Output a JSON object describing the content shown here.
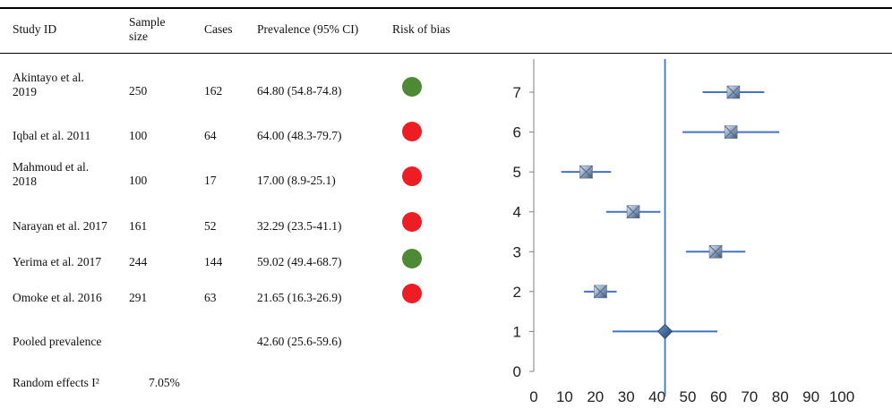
{
  "table": {
    "headers": {
      "study": "Study ID",
      "sample": "Sample size",
      "cases": "Cases",
      "prevalence": "Prevalence (95% CI)",
      "risk": "Risk of bias"
    },
    "rows": [
      {
        "study": "Akintayo et al. 2019",
        "sample": "250",
        "cases": "162",
        "prevalence": "64.80 (54.8-74.8)",
        "risk": "low"
      },
      {
        "study": "Iqbal et al. 2011",
        "sample": "100",
        "cases": "64",
        "prevalence": "64.00 (48.3-79.7)",
        "risk": "high"
      },
      {
        "study": "Mahmoud et al. 2018",
        "sample": "100",
        "cases": "17",
        "prevalence": "17.00 (8.9-25.1)",
        "risk": "high"
      },
      {
        "study": "Narayan et al. 2017",
        "sample": "161",
        "cases": "52",
        "prevalence": "32.29 (23.5-41.1)",
        "risk": "high"
      },
      {
        "study": "Yerima et al. 2017",
        "sample": "244",
        "cases": "144",
        "prevalence": "59.02 (49.4-68.7)",
        "risk": "low"
      },
      {
        "study": "Omoke et al. 2016",
        "sample": "291",
        "cases": "63",
        "prevalence": "21.65 (16.3-26.9)",
        "risk": "high"
      }
    ],
    "pooled": {
      "label": "Pooled prevalence",
      "prevalence": "42.60 (25.6-59.6)"
    },
    "random_effects": {
      "label": "Random effects I²",
      "value": "7.05%"
    }
  },
  "colors": {
    "low_risk": "#4e8a35",
    "high_risk": "#ee1d23",
    "chart_line": "#4472c4",
    "marker": "#8ea3c0",
    "diamond": "#2e5d8c"
  },
  "chart_data": {
    "type": "scatter",
    "xlim": [
      0,
      100
    ],
    "ylim": [
      0,
      7
    ],
    "xticks": [
      0,
      10,
      20,
      30,
      40,
      50,
      60,
      70,
      80,
      90,
      100
    ],
    "yticks": [
      0,
      1,
      2,
      3,
      4,
      5,
      6,
      7
    ],
    "reference_line_x": 42.6,
    "points": [
      {
        "y": 7,
        "x": 64.8,
        "lo": 54.8,
        "hi": 74.8
      },
      {
        "y": 6,
        "x": 64.0,
        "lo": 48.3,
        "hi": 79.7
      },
      {
        "y": 5,
        "x": 17.0,
        "lo": 8.9,
        "hi": 25.1
      },
      {
        "y": 4,
        "x": 32.29,
        "lo": 23.5,
        "hi": 41.1
      },
      {
        "y": 3,
        "x": 59.02,
        "lo": 49.4,
        "hi": 68.7
      },
      {
        "y": 2,
        "x": 21.65,
        "lo": 16.3,
        "hi": 26.9
      }
    ],
    "pooled": {
      "y": 1,
      "x": 42.6,
      "lo": 25.6,
      "hi": 59.6
    }
  }
}
